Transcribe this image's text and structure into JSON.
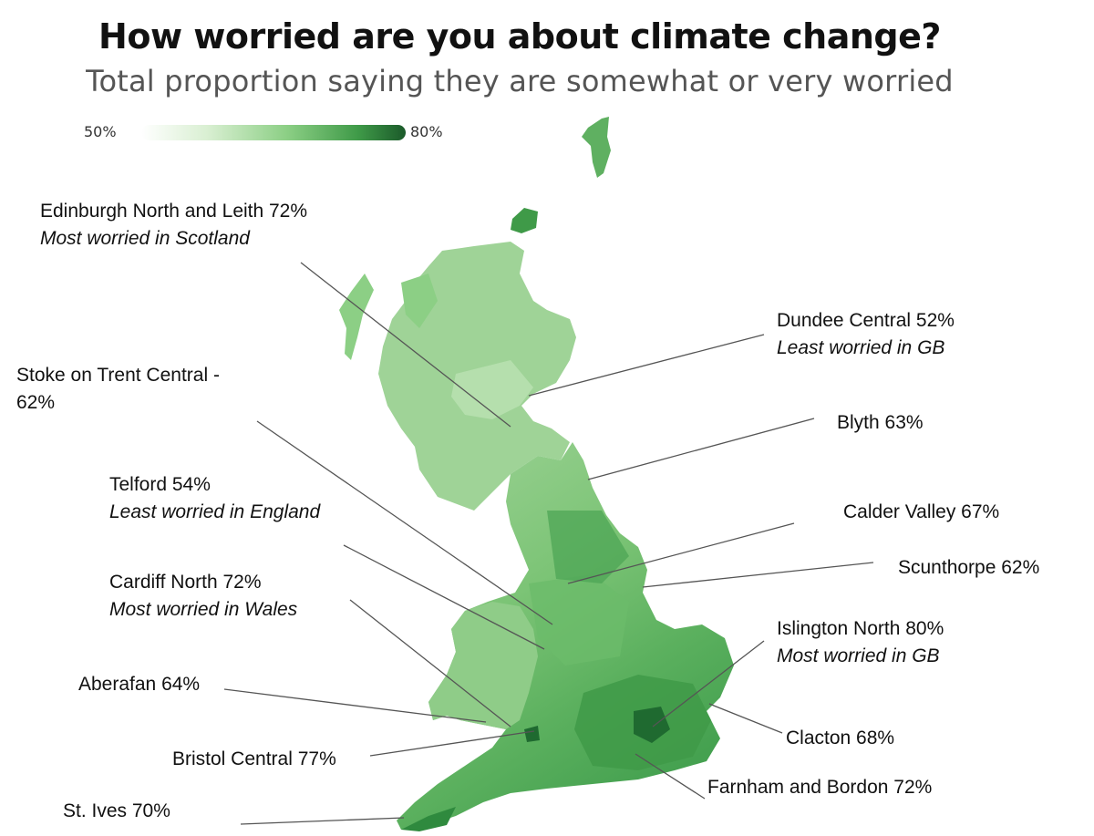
{
  "title": "How worried are you about climate change?",
  "subtitle": "Total proportion saying they are somewhat or very worried",
  "legend": {
    "min": "50%",
    "max": "80%",
    "colors": [
      "#ffffff",
      "#8ccf85",
      "#1b5a2a"
    ]
  },
  "annotations": {
    "edinburgh": {
      "label": "Edinburgh North and Leith 72%",
      "note": "Most worried in Scotland"
    },
    "dundee": {
      "label": "Dundee Central 52%",
      "note": "Least worried in GB"
    },
    "stoke": {
      "label_line1": "Stoke on Trent Central -",
      "label_line2": "62%"
    },
    "blyth": {
      "label": "Blyth 63%"
    },
    "telford": {
      "label": "Telford 54%",
      "note": "Least worried in England"
    },
    "calder": {
      "label": "Calder Valley 67%"
    },
    "scunthorpe": {
      "label": "Scunthorpe 62%"
    },
    "cardiff": {
      "label": "Cardiff North 72%",
      "note": "Most worried in Wales"
    },
    "islington": {
      "label": "Islington North 80%",
      "note": "Most worried in GB"
    },
    "aberafan": {
      "label": "Aberafan 64%"
    },
    "clacton": {
      "label": "Clacton 68%"
    },
    "bristol": {
      "label": "Bristol Central 77%"
    },
    "farnham": {
      "label": "Farnham and Bordon 72%"
    },
    "stives": {
      "label": "St. Ives 70%"
    }
  }
}
